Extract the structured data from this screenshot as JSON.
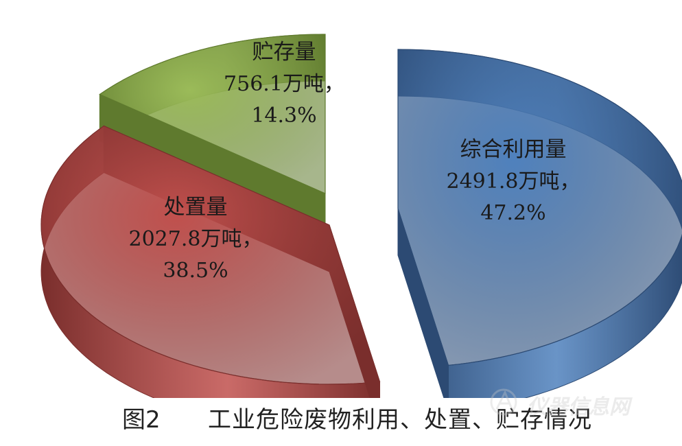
{
  "chart_data": {
    "type": "pie",
    "style": "3d-exploded",
    "slices": [
      {
        "name": "综合利用量",
        "value": 2491.8,
        "unit": "万吨",
        "percent": 47.2,
        "value_label": "2491.8万吨，",
        "percent_label": "47.2%",
        "color": "#4f81bd",
        "side_color": "#2c4a73"
      },
      {
        "name": "处置量",
        "value": 2027.8,
        "unit": "万吨",
        "percent": 38.5,
        "value_label": "2027.8万吨，",
        "percent_label": "38.5%",
        "color": "#c0504d",
        "side_color": "#7a2e2c"
      },
      {
        "name": "贮存量",
        "value": 756.1,
        "unit": "万吨",
        "percent": 14.3,
        "value_label": "756.1万吨，",
        "percent_label": "14.3%",
        "color": "#9bbb59",
        "side_color": "#5f7a2e"
      }
    ]
  },
  "caption": {
    "figure_number": "图2",
    "text": "工业危险废物利用、处置、贮存情况"
  },
  "watermark": {
    "text": "仪器信息网",
    "logo": "instrument-logo-icon"
  }
}
